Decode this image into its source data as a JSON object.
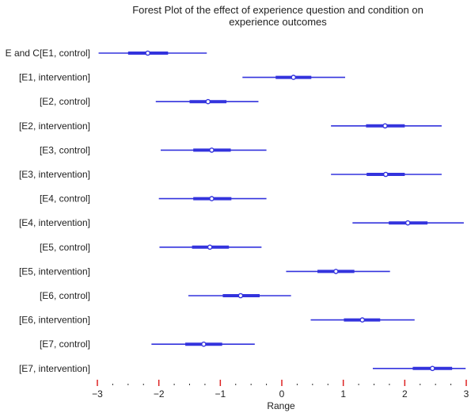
{
  "chart_data": {
    "type": "forest",
    "title": "Forest Plot of the effect of experience question and condition on experience outcomes",
    "title_lines": [
      "Forest Plot of the effect of experience question and condition on",
      "experience outcomes"
    ],
    "xlabel": "Range",
    "xlim": [
      -3,
      3
    ],
    "xticks": [
      -3,
      -2,
      -1,
      0,
      1,
      2,
      3
    ],
    "color": "#3333dd",
    "tick_color": "#dd2222",
    "rows": [
      {
        "label": "E and C[E1, control]",
        "mean": -2.18,
        "inner": [
          -2.5,
          -1.85
        ],
        "outer": [
          -2.98,
          -1.22
        ]
      },
      {
        "label": "[E1, intervention]",
        "mean": 0.19,
        "inner": [
          -0.1,
          0.48
        ],
        "outer": [
          -0.64,
          1.03
        ]
      },
      {
        "label": "[E2, control]",
        "mean": -1.2,
        "inner": [
          -1.5,
          -0.9
        ],
        "outer": [
          -2.05,
          -0.38
        ]
      },
      {
        "label": "[E2, intervention]",
        "mean": 1.68,
        "inner": [
          1.37,
          2.0
        ],
        "outer": [
          0.8,
          2.6
        ]
      },
      {
        "label": "[E3, control]",
        "mean": -1.14,
        "inner": [
          -1.44,
          -0.83
        ],
        "outer": [
          -1.97,
          -0.25
        ]
      },
      {
        "label": "[E3, intervention]",
        "mean": 1.69,
        "inner": [
          1.38,
          2.0
        ],
        "outer": [
          0.8,
          2.6
        ]
      },
      {
        "label": "[E4, control]",
        "mean": -1.14,
        "inner": [
          -1.44,
          -0.82
        ],
        "outer": [
          -2.0,
          -0.25
        ]
      },
      {
        "label": "[E4, intervention]",
        "mean": 2.05,
        "inner": [
          1.74,
          2.37
        ],
        "outer": [
          1.15,
          2.96
        ]
      },
      {
        "label": "[E5, control]",
        "mean": -1.17,
        "inner": [
          -1.46,
          -0.86
        ],
        "outer": [
          -1.99,
          -0.33
        ]
      },
      {
        "label": "[E5, intervention]",
        "mean": 0.88,
        "inner": [
          0.58,
          1.18
        ],
        "outer": [
          0.07,
          1.76
        ]
      },
      {
        "label": "[E6, control]",
        "mean": -0.67,
        "inner": [
          -0.96,
          -0.36
        ],
        "outer": [
          -1.52,
          0.15
        ]
      },
      {
        "label": "[E6, intervention]",
        "mean": 1.31,
        "inner": [
          1.01,
          1.6
        ],
        "outer": [
          0.47,
          2.16
        ]
      },
      {
        "label": "[E7, control]",
        "mean": -1.27,
        "inner": [
          -1.57,
          -0.97
        ],
        "outer": [
          -2.12,
          -0.44
        ]
      },
      {
        "label": "[E7, intervention]",
        "mean": 2.45,
        "inner": [
          2.13,
          2.77
        ],
        "outer": [
          1.48,
          2.99
        ]
      }
    ]
  }
}
